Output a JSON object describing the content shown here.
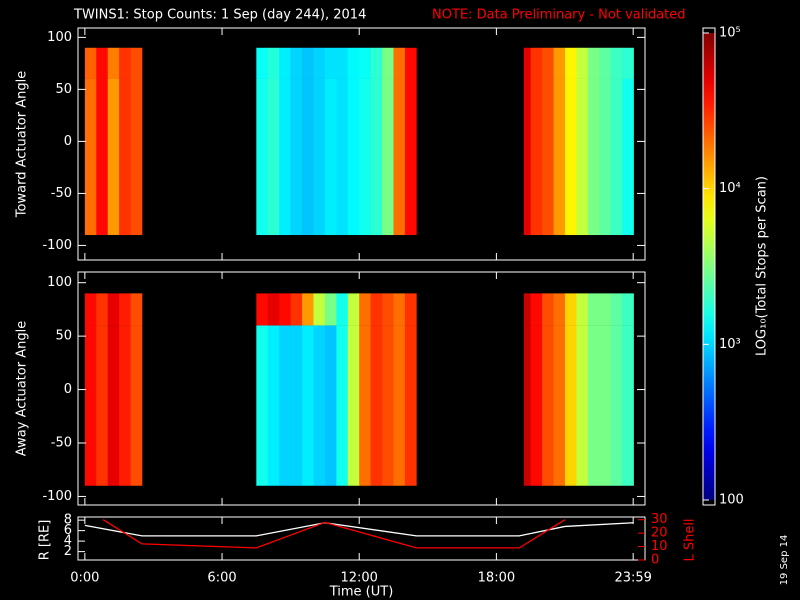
{
  "chart_data": [
    {
      "type": "heatmap",
      "title": "TWINS1: Stop Counts:  1 Sep (day 244), 2014",
      "annotation": "NOTE: Data Preliminary - Not validated",
      "ylabel": "Toward Actuator Angle",
      "x_bins": [
        0,
        0.5,
        1,
        1.5,
        2,
        2.5,
        7.5,
        8,
        8.5,
        9,
        9.5,
        10,
        10.5,
        11,
        11.5,
        12,
        12.5,
        13,
        13.5,
        14,
        14.5,
        19.2,
        19.5,
        20,
        20.5,
        21,
        21.5,
        22,
        22.5,
        23,
        23.5,
        24
      ],
      "y_bins": [
        -90,
        60,
        90
      ],
      "z": [
        [
          20000,
          40000,
          15000,
          30000,
          25000,
          null,
          1500,
          1800,
          1200,
          1000,
          900,
          1000,
          1200,
          1100,
          1300,
          1500,
          1800,
          3000,
          20000,
          40000,
          null,
          50000,
          30000,
          25000,
          15000,
          8000,
          5000,
          3000,
          2500,
          2000,
          1500
        ],
        [
          22000,
          40000,
          18000,
          30000,
          25000,
          null,
          1400,
          1700,
          1200,
          1000,
          900,
          1000,
          1100,
          1100,
          1300,
          1400,
          1800,
          3000,
          20000,
          40000,
          null,
          50000,
          30000,
          25000,
          15000,
          8000,
          5000,
          3000,
          2500,
          2000,
          1800
        ]
      ],
      "xlim": [
        -0.3,
        24.5
      ],
      "ylim": [
        -114,
        109
      ],
      "yticks": [
        -100,
        -50,
        0,
        50,
        100
      ],
      "zscale": "log",
      "zlim": [
        100,
        100000
      ],
      "colormap": "jet",
      "colorbar_label": "LOG₁₀(Total Stops per Scan)",
      "zticks": [
        100,
        {
          "value": 1000,
          "label": "10³"
        },
        {
          "value": 10000,
          "label": "10⁴"
        },
        {
          "value": 100000,
          "label": "10⁵"
        }
      ]
    },
    {
      "type": "heatmap",
      "ylabel": "Away Actuator Angle",
      "x_bins": [
        0,
        0.5,
        1,
        1.5,
        2,
        2.5,
        7.5,
        8,
        8.5,
        9,
        9.5,
        10,
        10.5,
        11,
        11.5,
        12,
        12.5,
        13,
        13.5,
        14,
        14.5,
        19.2,
        19.5,
        20,
        20.5,
        21,
        21.5,
        22,
        22.5,
        23,
        23.5,
        24
      ],
      "y_bins": [
        -90,
        60,
        90
      ],
      "z": [
        [
          40000,
          30000,
          50000,
          35000,
          25000,
          null,
          1500,
          1200,
          1000,
          1000,
          1200,
          1000,
          900,
          1500,
          5000,
          20000,
          30000,
          25000,
          20000,
          30000,
          null,
          60000,
          40000,
          25000,
          20000,
          10000,
          5000,
          3000,
          3000,
          2500,
          2000
        ],
        [
          40000,
          30000,
          50000,
          35000,
          25000,
          null,
          40000,
          50000,
          40000,
          30000,
          15000,
          5000,
          3000,
          1500,
          5000,
          20000,
          30000,
          25000,
          20000,
          30000,
          null,
          60000,
          40000,
          25000,
          20000,
          10000,
          5000,
          3000,
          3000,
          2500,
          2000
        ]
      ],
      "xlim": [
        -0.3,
        24.5
      ],
      "ylim": [
        -108,
        110
      ],
      "yticks": [
        -100,
        -50,
        0,
        50,
        100
      ],
      "zscale": "log",
      "zlim": [
        100,
        100000
      ],
      "colormap": "jet"
    },
    {
      "type": "line",
      "xlabel": "Time (UT)",
      "ylabel": "R [RE]",
      "y2label": "L Shell",
      "y2color": "#ff0000",
      "xlim": [
        -0.3,
        24.5
      ],
      "xticks": [
        {
          "value": 0,
          "label": "0:00"
        },
        {
          "value": 6,
          "label": "6:00"
        },
        {
          "value": 12,
          "label": "12:00"
        },
        {
          "value": 18,
          "label": "18:00"
        },
        {
          "value": 23.983,
          "label": "23:59"
        }
      ],
      "ylim": [
        0.4,
        8.6
      ],
      "yticks": [
        2,
        4,
        6,
        8
      ],
      "y2lim": [
        0,
        32
      ],
      "y2ticks": [
        0,
        10,
        20,
        30
      ],
      "series": [
        {
          "color": "#ffffff",
          "x": [
            0,
            2.5,
            7.5,
            10.5,
            14.5,
            19,
            21,
            24
          ],
          "values": [
            7,
            5,
            5,
            7.5,
            5,
            5,
            6.8,
            7.5
          ]
        },
        {
          "color": "#ff0000",
          "axis": "y2",
          "x": [
            0.8,
            2.5,
            7.5,
            10.5,
            14.5,
            19,
            21
          ],
          "values": [
            30,
            12,
            9,
            28,
            9,
            9,
            30
          ]
        }
      ]
    }
  ],
  "footer": "19 Sep 14"
}
